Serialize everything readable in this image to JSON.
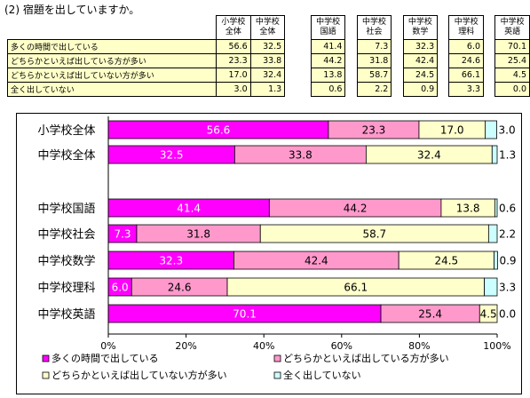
{
  "heading": "(2) 宿題を出していますか。",
  "table": {
    "columns": [
      "小学校\n全体",
      "中学校\n全体",
      "中学校\n国語",
      "中学校\n社会",
      "中学校\n数学",
      "中学校\n理科",
      "中学校\n英語"
    ],
    "rows": [
      {
        "label": "多くの時間で出している",
        "values": [
          "56.6",
          "32.5",
          "41.4",
          "7.3",
          "32.3",
          "6.0",
          "70.1"
        ]
      },
      {
        "label": "どちらかといえば出している方が多い",
        "values": [
          "23.3",
          "33.8",
          "44.2",
          "31.8",
          "42.4",
          "24.6",
          "25.4"
        ]
      },
      {
        "label": "どちらかといえば出していない方が多い",
        "values": [
          "17.0",
          "32.4",
          "13.8",
          "58.7",
          "24.5",
          "66.1",
          "4.5"
        ]
      },
      {
        "label": "全く出していない",
        "values": [
          "3.0",
          "1.3",
          "0.6",
          "2.2",
          "0.9",
          "3.3",
          "0.0"
        ]
      }
    ]
  },
  "chart_data": {
    "type": "bar",
    "orientation": "horizontal",
    "stacked": true,
    "categories": [
      "小学校全体",
      "中学校全体",
      "中学校国語",
      "中学校社会",
      "中学校数学",
      "中学校理科",
      "中学校英語"
    ],
    "series": [
      {
        "name": "多くの時間で出している",
        "color": "#ff00ff",
        "values": [
          56.6,
          32.5,
          41.4,
          7.3,
          32.3,
          6.0,
          70.1
        ]
      },
      {
        "name": "どちらかといえば出している方が多い",
        "color": "#ff99cc",
        "values": [
          23.3,
          33.8,
          44.2,
          31.8,
          42.4,
          24.6,
          25.4
        ]
      },
      {
        "name": "どちらかといえば出していない方が多い",
        "color": "#ffffcc",
        "values": [
          17.0,
          32.4,
          13.8,
          58.7,
          24.5,
          66.1,
          4.5
        ]
      },
      {
        "name": "全く出していない",
        "color": "#ccffff",
        "values": [
          3.0,
          1.3,
          0.6,
          2.2,
          0.9,
          3.3,
          0.0
        ]
      }
    ],
    "xlim": [
      0,
      100
    ],
    "xticks": [
      "0%",
      "20%",
      "40%",
      "60%",
      "80%",
      "100%"
    ],
    "grid": false,
    "legend_position": "bottom"
  }
}
